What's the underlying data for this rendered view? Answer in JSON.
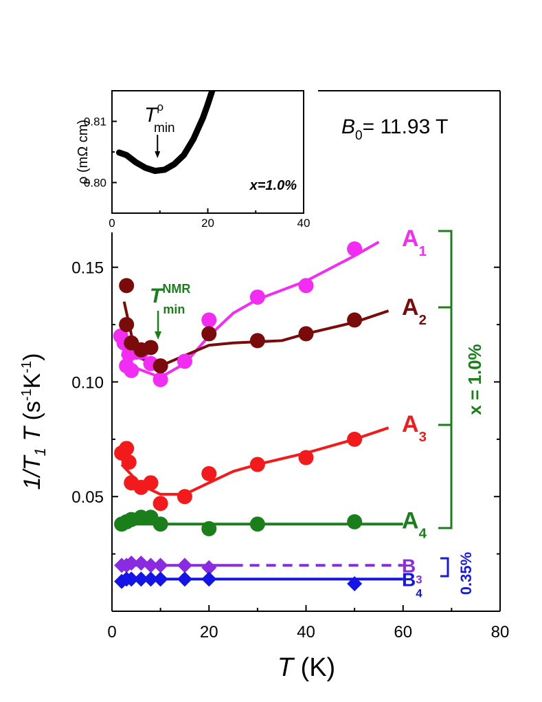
{
  "chart_data": [
    {
      "type": "scatter",
      "title": "",
      "xlabel": "T (K)",
      "ylabel": "1/T1T (s-1K-1)",
      "xlim": [
        0,
        80
      ],
      "ylim": [
        0,
        0.17
      ],
      "x_ticks": [
        0,
        20,
        40,
        60,
        80
      ],
      "y_ticks": [
        0.05,
        0.1,
        0.15
      ],
      "x_tick_labels": [
        "0",
        "20",
        "40",
        "60",
        "80"
      ],
      "y_tick_labels": [
        "0.05",
        "0.10",
        "0.15"
      ],
      "grid": false,
      "field_label": {
        "sym": "B",
        "sub": "0",
        "text": "= 11.93 T"
      },
      "tmin_label": {
        "sym": "T",
        "sup": "NMR",
        "sub": "min"
      },
      "tmin_x": 9.5,
      "group_labels": [
        {
          "text": "x = 1.0%",
          "color": "#1a7f1a"
        },
        {
          "text": "0.35%",
          "color": "#1a1adb"
        }
      ],
      "series": [
        {
          "name": "A",
          "sub": "1",
          "color": "#f22cf2",
          "marker": "circle",
          "x": [
            1.8,
            2.5,
            3,
            3.5,
            4,
            5,
            6,
            8,
            10,
            15,
            20,
            30,
            40,
            50
          ],
          "y": [
            0.12,
            0.117,
            0.107,
            0.112,
            0.105,
            0.113,
            0.113,
            0.108,
            0.101,
            0.109,
            0.127,
            0.137,
            0.142,
            0.158
          ],
          "fit_x": [
            2,
            5,
            10,
            15,
            20,
            25,
            30,
            40,
            50,
            55
          ],
          "fit_y": [
            0.112,
            0.106,
            0.102,
            0.108,
            0.12,
            0.13,
            0.136,
            0.144,
            0.155,
            0.161
          ]
        },
        {
          "name": "A",
          "sub": "2",
          "color": "#7a0b0b",
          "marker": "circle",
          "x": [
            3,
            3,
            4,
            6,
            8,
            10,
            20,
            30,
            40,
            50
          ],
          "y": [
            0.142,
            0.125,
            0.117,
            0.114,
            0.115,
            0.107,
            0.121,
            0.118,
            0.121,
            0.127
          ],
          "fit_x": [
            2.5,
            5,
            10,
            20,
            25,
            35,
            40,
            50,
            57
          ],
          "fit_y": [
            0.135,
            0.111,
            0.107,
            0.116,
            0.117,
            0.118,
            0.121,
            0.126,
            0.131
          ]
        },
        {
          "name": "A",
          "sub": "3",
          "color": "#f21a1a",
          "marker": "circle",
          "x": [
            2,
            3,
            3.5,
            4,
            6,
            8,
            10,
            15,
            20,
            30,
            40,
            50
          ],
          "y": [
            0.069,
            0.071,
            0.065,
            0.056,
            0.054,
            0.056,
            0.047,
            0.05,
            0.06,
            0.064,
            0.067,
            0.075
          ],
          "fit_x": [
            2,
            6,
            10,
            15,
            20,
            25,
            30,
            40,
            50,
            57
          ],
          "fit_y": [
            0.064,
            0.055,
            0.051,
            0.051,
            0.056,
            0.061,
            0.064,
            0.069,
            0.075,
            0.08
          ]
        },
        {
          "name": "A",
          "sub": "4",
          "color": "#1a7f1a",
          "marker": "circle",
          "x": [
            2,
            3,
            4,
            6,
            8,
            10,
            20,
            30,
            50
          ],
          "y": [
            0.038,
            0.039,
            0.04,
            0.041,
            0.041,
            0.038,
            0.036,
            0.038,
            0.039
          ],
          "fit_x": [
            2,
            60
          ],
          "fit_y": [
            0.038,
            0.038
          ]
        },
        {
          "name": "B",
          "sub": "3",
          "color": "#8a2be2",
          "marker": "diamond",
          "x": [
            2,
            3,
            4,
            6,
            8,
            10,
            15,
            20
          ],
          "y": [
            0.02,
            0.02,
            0.021,
            0.021,
            0.02,
            0.02,
            0.02,
            0.019
          ],
          "fit_x": [
            2,
            25
          ],
          "fit_y": [
            0.02,
            0.02
          ],
          "dash_x": [
            25,
            60
          ],
          "dash_y": [
            0.02,
            0.02
          ]
        },
        {
          "name": "B",
          "sub": "4",
          "color": "#1414e6",
          "marker": "diamond",
          "x": [
            2,
            3,
            4,
            6,
            8,
            10,
            15,
            20,
            50
          ],
          "y": [
            0.013,
            0.014,
            0.014,
            0.014,
            0.014,
            0.014,
            0.014,
            0.014,
            0.012
          ],
          "fit_x": [
            2,
            60
          ],
          "fit_y": [
            0.014,
            0.014
          ]
        }
      ]
    },
    {
      "type": "line",
      "title": "",
      "xlabel": "",
      "ylabel": "ρ (mΩ cm)",
      "xlim": [
        0,
        40
      ],
      "ylim": [
        0.795,
        0.815
      ],
      "x_ticks": [
        0,
        20,
        40
      ],
      "y_ticks": [
        0.8,
        0.81
      ],
      "x_tick_labels": [
        "0",
        "20",
        "40"
      ],
      "y_tick_labels": [
        "0.80",
        "0.81"
      ],
      "grid": false,
      "annotation": "x=1.0%",
      "tmin_label": {
        "sym": "T",
        "sup": "ρ",
        "sub": "min"
      },
      "tmin_x": 9.5,
      "series": [
        {
          "name": "",
          "color": "#000000",
          "x": [
            1.5,
            3,
            5,
            7,
            9,
            11,
            13,
            15,
            17,
            19,
            20,
            21
          ],
          "y": [
            0.8049,
            0.8045,
            0.8033,
            0.8024,
            0.8019,
            0.8021,
            0.803,
            0.8045,
            0.8071,
            0.8106,
            0.8128,
            0.8152
          ]
        }
      ]
    }
  ]
}
